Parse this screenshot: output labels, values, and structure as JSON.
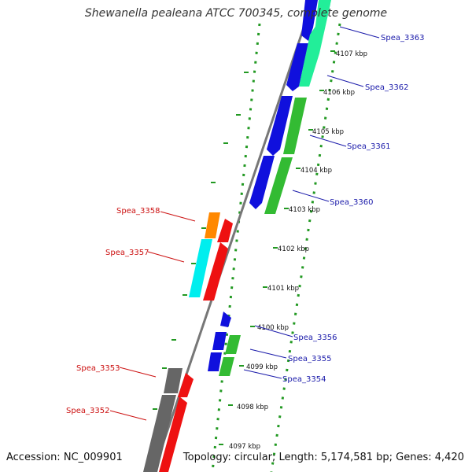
{
  "title": "Shewanella pealeana ATCC 700345, complete genome",
  "footer": {
    "accession": "Accession: NC_009901",
    "summary": "Topology: circular; Length: 5,174,581 bp; Genes: 4,420"
  },
  "ticks": [
    "4107 kbp",
    "4106 kbp",
    "4105 kbp",
    "4104 kbp",
    "4103 kbp",
    "4102 kbp",
    "4101 kbp",
    "4100 kbp",
    "4099 kbp",
    "4098 kbp",
    "4097 kbp"
  ],
  "genes_right": [
    "Spea_3363",
    "Spea_3362",
    "Spea_3361",
    "Spea_3360",
    "Spea_3356",
    "Spea_3355",
    "Spea_3354"
  ],
  "genes_left": [
    "Spea_3358",
    "Spea_3357",
    "Spea_3353",
    "Spea_3352"
  ],
  "colors": {
    "right_label": "#1a1aaa",
    "left_label": "#cc1111",
    "backbone": "#777777",
    "dotted_track": "#229922",
    "blue": "#1010dd",
    "green": "#33bb33",
    "mint": "#22ee99",
    "red": "#ee1111",
    "orange": "#ff8800",
    "cyan": "#00eeee",
    "gray": "#666666"
  }
}
